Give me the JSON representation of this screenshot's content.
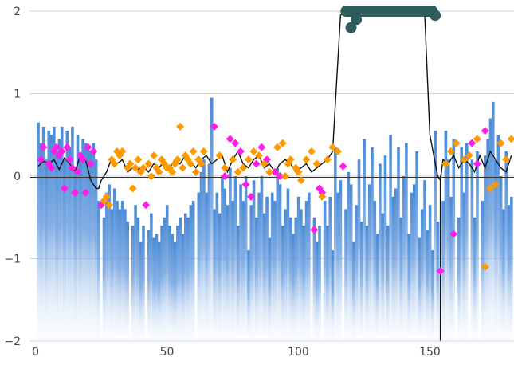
{
  "chart_data": {
    "type": "scatter",
    "title": "",
    "xlabel": "",
    "ylabel": "",
    "xlim": [
      -2,
      182
    ],
    "ylim": [
      -2,
      2
    ],
    "x_ticks": [
      0,
      50,
      100,
      150
    ],
    "x_tick_labels": [
      "0",
      "50",
      "100",
      "150"
    ],
    "y_ticks": [
      -2,
      -1,
      0,
      1,
      2
    ],
    "y_tick_labels": [
      "−2",
      "−1",
      "0",
      "1",
      "2"
    ],
    "grid": "horizontal",
    "legend": "none",
    "colors": {
      "area": "#4a8ad6",
      "line": "#111111",
      "magenta": "#ff1ee6",
      "orange": "#ff9900",
      "band": "#2e5c5c"
    },
    "series": [
      {
        "type": "area",
        "x": [
          1,
          2,
          3,
          4,
          5,
          6,
          7,
          8,
          9,
          10,
          11,
          12,
          13,
          14,
          15,
          16,
          17,
          18,
          19,
          20,
          21,
          22,
          23,
          24,
          25,
          26,
          27,
          28,
          29,
          30,
          31,
          32,
          33,
          34,
          35,
          36,
          37,
          38,
          39,
          40,
          41,
          42,
          43,
          44,
          45,
          46,
          47,
          48,
          49,
          50,
          51,
          52,
          53,
          54,
          55,
          56,
          57,
          58,
          59,
          60,
          61,
          62,
          63,
          64,
          65,
          66,
          67,
          68,
          69,
          70,
          71,
          72,
          73,
          74,
          75,
          76,
          77,
          78,
          79,
          80,
          81,
          82,
          83,
          84,
          85,
          86,
          87,
          88,
          89,
          90,
          91,
          92,
          93,
          94,
          95,
          96,
          97,
          98,
          99,
          100,
          101,
          102,
          103,
          104,
          105,
          106,
          107,
          108,
          109,
          110,
          111,
          112,
          113,
          114,
          115,
          116,
          117,
          118,
          119,
          120,
          121,
          122,
          123,
          124,
          125,
          126,
          127,
          128,
          129,
          130,
          131,
          132,
          133,
          134,
          135,
          136,
          137,
          138,
          139,
          140,
          141,
          142,
          143,
          144,
          145,
          146,
          147,
          148,
          149,
          150,
          151,
          152,
          153,
          154,
          155,
          156,
          157,
          158,
          159,
          160,
          161,
          162,
          163,
          164,
          165,
          166,
          167,
          168,
          169,
          170,
          171,
          172,
          173,
          174,
          175,
          176,
          177,
          178,
          179,
          180,
          181
        ],
        "values": [
          0.65,
          0.4,
          0.6,
          0.2,
          0.55,
          0.5,
          0.6,
          0.3,
          0.45,
          0.6,
          0.2,
          0.55,
          0.35,
          0.6,
          0.1,
          0.5,
          0.2,
          0.45,
          0.4,
          0.35,
          0.3,
          0.4,
          0.2,
          -0.3,
          -2.0,
          -0.5,
          -0.2,
          -0.1,
          -0.4,
          -0.15,
          -0.3,
          -0.4,
          -0.3,
          -0.4,
          -0.55,
          -2.0,
          -0.6,
          -0.35,
          -0.5,
          -0.8,
          -0.6,
          -2.0,
          -0.65,
          -0.45,
          -0.75,
          -0.7,
          -0.8,
          -0.6,
          -0.5,
          -0.35,
          -0.6,
          -0.7,
          -0.8,
          -0.6,
          -0.5,
          -0.7,
          -0.45,
          -0.5,
          -0.35,
          -0.3,
          -2.0,
          -0.2,
          0.05,
          0.2,
          -0.2,
          0.15,
          0.95,
          -0.4,
          -0.2,
          -0.45,
          0.0,
          -0.15,
          -0.35,
          0.1,
          -0.3,
          0.0,
          -0.6,
          -0.1,
          -0.3,
          0.0,
          -0.9,
          -0.35,
          -0.05,
          -0.5,
          -0.2,
          0.0,
          -0.45,
          -0.25,
          -0.75,
          -0.2,
          -0.3,
          0.1,
          -0.1,
          -0.6,
          -0.4,
          -0.15,
          -0.5,
          -0.7,
          -0.5,
          -0.25,
          -0.4,
          -0.6,
          -0.3,
          -0.2,
          -2.0,
          -0.5,
          -0.8,
          -0.6,
          -2.0,
          -0.3,
          -0.6,
          -0.25,
          -0.9,
          0.35,
          -0.2,
          -0.05,
          -2.0,
          -0.4,
          0.05,
          -0.1,
          -0.8,
          -0.35,
          0.2,
          -0.55,
          0.45,
          -0.6,
          -0.1,
          0.35,
          -0.3,
          -0.7,
          0.15,
          -0.45,
          0.25,
          -0.6,
          0.5,
          -0.25,
          -0.15,
          0.35,
          -0.5,
          0.0,
          0.4,
          -0.7,
          -0.2,
          -0.1,
          0.3,
          -0.75,
          -0.4,
          -0.05,
          -0.65,
          -0.35,
          -0.9,
          0.55,
          -0.55,
          -2.0,
          -0.3,
          0.55,
          0.2,
          -0.25,
          0.45,
          -2.0,
          -0.5,
          0.35,
          -0.2,
          0.4,
          -2.0,
          0.2,
          -0.5,
          0.3,
          -2.0,
          -0.3,
          0.25,
          0.45,
          0.7,
          0.9,
          0.2,
          0.5,
          0.0,
          -0.4,
          0.3,
          -0.35,
          -0.25
        ]
      },
      {
        "type": "line",
        "x": [
          1,
          3,
          5,
          7,
          9,
          11,
          13,
          15,
          17,
          19,
          21,
          23,
          24,
          25,
          27,
          29,
          31,
          33,
          35,
          37,
          39,
          41,
          43,
          45,
          47,
          49,
          51,
          53,
          55,
          57,
          59,
          61,
          63,
          65,
          67,
          69,
          71,
          73,
          75,
          77,
          79,
          81,
          83,
          85,
          87,
          89,
          91,
          93,
          95,
          97,
          99,
          101,
          103,
          105,
          107,
          109,
          111,
          113,
          116,
          118,
          120,
          148,
          150,
          153,
          154,
          155,
          157,
          159,
          161,
          163,
          165,
          167,
          169,
          171,
          173,
          175,
          177,
          179,
          181
        ],
        "values": [
          0.12,
          0.18,
          0.15,
          0.2,
          0.08,
          0.22,
          0.15,
          0.05,
          0.25,
          0.2,
          -0.05,
          -0.15,
          -0.15,
          -0.05,
          0.05,
          0.22,
          0.15,
          0.2,
          0.05,
          0.1,
          0.08,
          0.12,
          0.05,
          0.15,
          0.1,
          0.18,
          0.1,
          0.2,
          0.15,
          0.25,
          0.18,
          0.1,
          0.2,
          0.25,
          0.15,
          0.2,
          0.25,
          0.05,
          0.2,
          0.3,
          0.15,
          0.1,
          0.2,
          0.25,
          0.1,
          0.15,
          0.05,
          0.15,
          0.2,
          0.15,
          0.05,
          0.1,
          0.15,
          0.05,
          0.1,
          0.15,
          0.2,
          0.3,
          1.95,
          2.0,
          2.0,
          2.0,
          0.5,
          0.0,
          -0.05,
          0.2,
          0.15,
          0.25,
          0.1,
          0.2,
          0.15,
          0.05,
          0.25,
          0.1,
          0.3,
          0.2,
          0.1,
          0.05,
          0.25
        ]
      },
      {
        "type": "line",
        "x": [
          154,
          154
        ],
        "values": [
          0.0,
          -2.0
        ]
      },
      {
        "type": "scatter",
        "x": [
          2,
          3,
          5,
          6,
          7,
          8,
          9,
          10,
          11,
          12,
          13,
          14,
          15,
          16,
          17,
          18,
          19,
          20,
          21,
          22,
          25,
          42,
          68,
          72,
          74,
          76,
          78,
          80,
          82,
          84,
          86,
          88,
          91,
          93,
          106,
          108,
          109,
          117,
          154,
          159,
          166,
          168,
          171
        ],
        "values": [
          0.2,
          0.35,
          0.15,
          0.1,
          0.3,
          0.35,
          0.25,
          0.3,
          -0.15,
          0.35,
          0.2,
          0.1,
          -0.2,
          0.05,
          0.25,
          0.2,
          -0.2,
          0.35,
          0.15,
          0.3,
          -0.35,
          -0.35,
          0.6,
          0.0,
          0.45,
          0.4,
          0.3,
          -0.1,
          -0.25,
          0.15,
          0.35,
          0.2,
          0.05,
          0.0,
          -0.65,
          -0.15,
          -0.2,
          0.12,
          -1.15,
          -0.7,
          0.4,
          0.15,
          0.55
        ],
        "color": "magenta"
      },
      {
        "type": "scatter",
        "x": [
          26,
          27,
          28,
          29,
          30,
          31,
          32,
          33,
          35,
          36,
          37,
          38,
          39,
          40,
          41,
          43,
          44,
          45,
          46,
          47,
          48,
          49,
          50,
          51,
          52,
          53,
          54,
          55,
          56,
          57,
          58,
          59,
          60,
          61,
          62,
          63,
          64,
          70,
          72,
          75,
          77,
          79,
          81,
          83,
          85,
          87,
          89,
          92,
          94,
          95,
          96,
          97,
          99,
          100,
          101,
          103,
          105,
          107,
          109,
          111,
          113,
          115,
          156,
          158,
          160,
          163,
          165,
          168,
          171,
          173,
          175,
          177,
          179,
          181
        ],
        "values": [
          -0.3,
          -0.25,
          -0.35,
          0.2,
          0.15,
          0.3,
          0.25,
          0.3,
          0.1,
          0.15,
          -0.15,
          0.1,
          0.2,
          0.05,
          0.1,
          0.15,
          0.0,
          0.25,
          0.1,
          0.05,
          0.2,
          0.15,
          0.1,
          0.1,
          0.05,
          0.15,
          0.2,
          0.6,
          0.1,
          0.25,
          0.2,
          0.15,
          0.3,
          0.05,
          0.2,
          0.15,
          0.3,
          0.25,
          0.1,
          0.2,
          0.05,
          0.1,
          0.2,
          0.3,
          0.25,
          0.15,
          0.05,
          0.35,
          0.4,
          0.0,
          0.15,
          0.2,
          0.1,
          0.05,
          -0.05,
          0.2,
          0.3,
          0.15,
          -0.25,
          0.2,
          0.35,
          0.3,
          0.15,
          0.3,
          0.4,
          0.2,
          0.25,
          0.45,
          -1.1,
          -0.15,
          -0.1,
          0.4,
          0.2,
          0.45
        ],
        "color": "orange"
      },
      {
        "type": "band",
        "x_range": [
          116,
          153
        ],
        "y": 2.0,
        "color": "band"
      },
      {
        "type": "scatter",
        "x": [
          120,
          122,
          152
        ],
        "values": [
          1.8,
          1.9,
          1.95
        ],
        "color": "band"
      }
    ]
  }
}
